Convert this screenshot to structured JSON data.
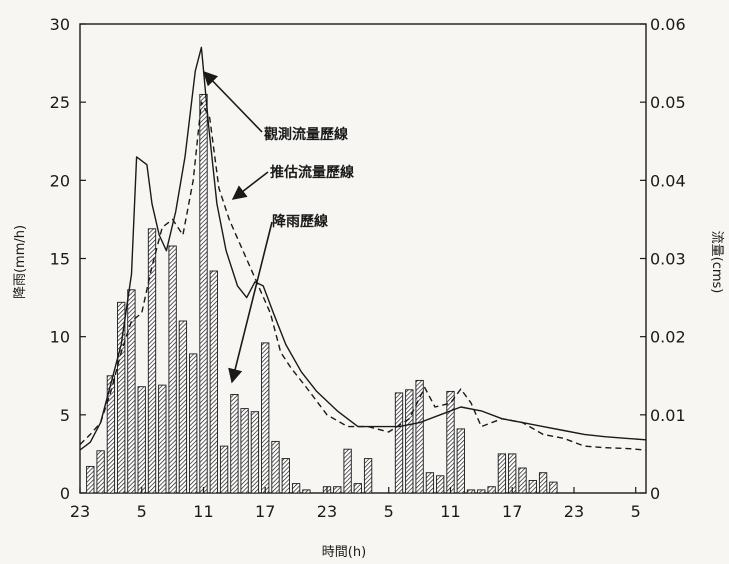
{
  "chart_data": {
    "type": "bar+line",
    "title": "",
    "xlabel": "時間(h)",
    "ylabel_left": "降雨(mm/h)",
    "ylabel_right": "流量(cms)",
    "ylim_left": [
      0,
      30
    ],
    "ylim_right": [
      0,
      0.06
    ],
    "x_range_hours": [
      -1,
      54
    ],
    "x_tick_values": [
      -1,
      5,
      11,
      17,
      23,
      29,
      35,
      41,
      47,
      53
    ],
    "x_tick_labels": [
      "23",
      "5",
      "11",
      "17",
      "23",
      "5",
      "11",
      "17",
      "23",
      "5"
    ],
    "y_left_ticks": [
      0,
      5,
      10,
      15,
      20,
      25,
      30
    ],
    "y_right_ticks": [
      0,
      0.01,
      0.02,
      0.03,
      0.04,
      0.05,
      0.06
    ],
    "y_right_tick_labels": [
      "0",
      "0.01",
      "0.02",
      "0.03",
      "0.04",
      "0.05",
      "0.06"
    ],
    "grid": false,
    "rainfall": {
      "name": "降雨歷線",
      "hours": [
        0,
        1,
        2,
        3,
        4,
        5,
        6,
        7,
        8,
        9,
        10,
        11,
        12,
        13,
        14,
        15,
        16,
        17,
        18,
        19,
        20,
        21,
        22,
        23,
        24,
        25,
        26,
        27,
        28,
        29,
        30,
        31,
        32,
        33,
        34,
        35,
        36,
        37,
        38,
        39,
        40,
        41,
        42,
        43,
        44,
        45,
        46,
        47,
        48,
        49
      ],
      "values": [
        1.7,
        2.7,
        7.5,
        12.2,
        13,
        6.8,
        16.9,
        6.9,
        15.8,
        11,
        8.9,
        25.5,
        14.2,
        3,
        6.3,
        5.4,
        5.2,
        9.6,
        3.3,
        2.2,
        0.6,
        0.2,
        0,
        0.4,
        0.4,
        2.8,
        0.6,
        2.2,
        0,
        0,
        6.4,
        6.6,
        7.2,
        1.3,
        1.1,
        6.5,
        4.1,
        0.2,
        0.2,
        0.4,
        2.5,
        2.5,
        1.6,
        0.8,
        1.3,
        0.7,
        0,
        0,
        0,
        0
      ]
    },
    "observed_flow": {
      "name": "觀測流量歷線",
      "points": [
        [
          -1,
          0.0055
        ],
        [
          0,
          0.0065
        ],
        [
          1,
          0.009
        ],
        [
          2,
          0.014
        ],
        [
          3,
          0.019
        ],
        [
          4,
          0.028
        ],
        [
          4.5,
          0.043
        ],
        [
          5.5,
          0.042
        ],
        [
          6,
          0.037
        ],
        [
          6.7,
          0.033
        ],
        [
          7.4,
          0.031
        ],
        [
          8.3,
          0.036
        ],
        [
          9.2,
          0.043
        ],
        [
          10.2,
          0.054
        ],
        [
          10.8,
          0.057
        ],
        [
          11.5,
          0.047
        ],
        [
          12.3,
          0.037
        ],
        [
          13.2,
          0.031
        ],
        [
          14.3,
          0.0265
        ],
        [
          15.2,
          0.025
        ],
        [
          16,
          0.027
        ],
        [
          16.8,
          0.0265
        ],
        [
          17.8,
          0.023
        ],
        [
          19,
          0.019
        ],
        [
          20.5,
          0.0155
        ],
        [
          22,
          0.013
        ],
        [
          24,
          0.0105
        ],
        [
          26,
          0.0085
        ],
        [
          28,
          0.0085
        ],
        [
          30,
          0.0085
        ],
        [
          32,
          0.009
        ],
        [
          34,
          0.01
        ],
        [
          36,
          0.011
        ],
        [
          38,
          0.0105
        ],
        [
          40,
          0.0095
        ],
        [
          42,
          0.009
        ],
        [
          44,
          0.0085
        ],
        [
          46,
          0.008
        ],
        [
          48,
          0.0075
        ],
        [
          50,
          0.0072
        ],
        [
          52,
          0.007
        ],
        [
          54,
          0.0068
        ]
      ]
    },
    "estimated_flow": {
      "name": "推估流量歷線",
      "points": [
        [
          -1,
          0.0062
        ],
        [
          0,
          0.0075
        ],
        [
          1,
          0.009
        ],
        [
          2,
          0.013
        ],
        [
          3,
          0.018
        ],
        [
          4,
          0.022
        ],
        [
          5,
          0.023
        ],
        [
          6,
          0.029
        ],
        [
          7,
          0.034
        ],
        [
          8,
          0.035
        ],
        [
          9,
          0.033
        ],
        [
          10,
          0.04
        ],
        [
          10.8,
          0.05
        ],
        [
          11.6,
          0.048
        ],
        [
          12.5,
          0.039
        ],
        [
          13.5,
          0.035
        ],
        [
          14.5,
          0.032
        ],
        [
          15.5,
          0.029
        ],
        [
          16.5,
          0.026
        ],
        [
          17.5,
          0.023
        ],
        [
          18.5,
          0.018
        ],
        [
          19.5,
          0.016
        ],
        [
          21,
          0.0135
        ],
        [
          23,
          0.01
        ],
        [
          25,
          0.0085
        ],
        [
          27,
          0.0085
        ],
        [
          29,
          0.0078
        ],
        [
          31,
          0.0095
        ],
        [
          32.5,
          0.0135
        ],
        [
          33.5,
          0.011
        ],
        [
          35,
          0.0115
        ],
        [
          36,
          0.0133
        ],
        [
          37,
          0.0115
        ],
        [
          38,
          0.0085
        ],
        [
          40,
          0.0095
        ],
        [
          42,
          0.009
        ],
        [
          44,
          0.0075
        ],
        [
          46,
          0.007
        ],
        [
          48,
          0.006
        ],
        [
          50,
          0.0058
        ],
        [
          52,
          0.0057
        ],
        [
          54,
          0.0055
        ]
      ]
    },
    "annotations": [
      {
        "text": "觀測流量歷線",
        "target_series": "observed_flow"
      },
      {
        "text": "推估流量歷線",
        "target_series": "estimated_flow"
      },
      {
        "text": "降雨歷線",
        "target_series": "rainfall"
      }
    ],
    "colors": {
      "background": "#f7f6f2",
      "ink": "#1a1a1a",
      "bar_fill": "#ffffff"
    }
  }
}
